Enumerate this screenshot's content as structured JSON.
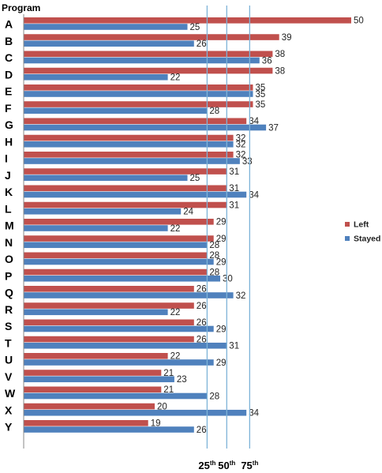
{
  "chart_data": {
    "type": "bar",
    "orientation": "horizontal",
    "title": "Program",
    "categories": [
      "A",
      "B",
      "C",
      "D",
      "E",
      "F",
      "G",
      "H",
      "I",
      "J",
      "K",
      "L",
      "M",
      "N",
      "O",
      "P",
      "Q",
      "R",
      "S",
      "T",
      "U",
      "V",
      "W",
      "X",
      "Y"
    ],
    "series": [
      {
        "name": "Left",
        "color": "#c0504d",
        "values": [
          50,
          39,
          38,
          38,
          35,
          35,
          34,
          32,
          32,
          31,
          31,
          31,
          29,
          29,
          28,
          28,
          26,
          26,
          26,
          26,
          22,
          21,
          21,
          20,
          19
        ]
      },
      {
        "name": "Stayed",
        "color": "#4f81bd",
        "values": [
          25,
          26,
          36,
          22,
          35,
          28,
          37,
          32,
          33,
          25,
          34,
          24,
          22,
          28,
          29,
          30,
          32,
          22,
          29,
          31,
          29,
          23,
          28,
          34,
          26
        ]
      }
    ],
    "xlim": [
      0,
      50
    ],
    "legend_position": "right",
    "reference_lines": [
      {
        "base": "25",
        "suffix": "th",
        "value": 28
      },
      {
        "base": "50",
        "suffix": "th",
        "value": 31
      },
      {
        "base": "75",
        "suffix": "th",
        "value": 34.5
      }
    ],
    "reference_line_color": "#7eb3d8"
  }
}
